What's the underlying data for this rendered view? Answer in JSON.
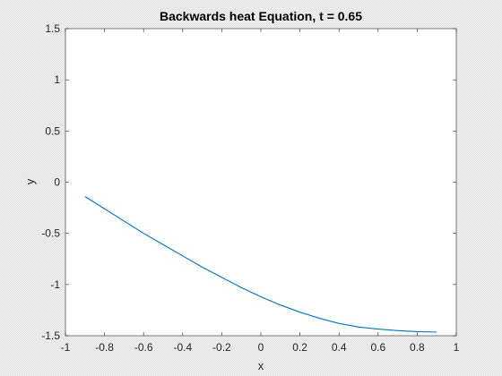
{
  "chart_data": {
    "type": "line",
    "title": "Backwards heat Equation, t = 0.65",
    "xlabel": "x",
    "ylabel": "y",
    "xlim": [
      -1,
      1
    ],
    "ylim": [
      -1.5,
      1.5
    ],
    "xticks": [
      -1,
      -0.8,
      -0.6,
      -0.4,
      -0.2,
      0,
      0.2,
      0.4,
      0.6,
      0.8,
      1
    ],
    "xtick_labels": [
      "-1",
      "-0.8",
      "-0.6",
      "-0.4",
      "-0.2",
      "0",
      "0.2",
      "0.4",
      "0.6",
      "0.8",
      "1"
    ],
    "yticks": [
      -1.5,
      -1,
      -0.5,
      0,
      0.5,
      1,
      1.5
    ],
    "ytick_labels": [
      "-1.5",
      "-1",
      "-0.5",
      "0",
      "0.5",
      "1",
      "1.5"
    ],
    "grid": false,
    "series": [
      {
        "color": "#0072BD",
        "x": [
          -0.9,
          -0.8,
          -0.7,
          -0.6,
          -0.5,
          -0.4,
          -0.3,
          -0.2,
          -0.1,
          0,
          0.1,
          0.2,
          0.3,
          0.4,
          0.5,
          0.6,
          0.7,
          0.8,
          0.9
        ],
        "y": [
          -0.14,
          -0.26,
          -0.38,
          -0.5,
          -0.61,
          -0.72,
          -0.83,
          -0.93,
          -1.03,
          -1.12,
          -1.2,
          -1.27,
          -1.33,
          -1.38,
          -1.415,
          -1.435,
          -1.45,
          -1.46,
          -1.465
        ]
      }
    ]
  }
}
